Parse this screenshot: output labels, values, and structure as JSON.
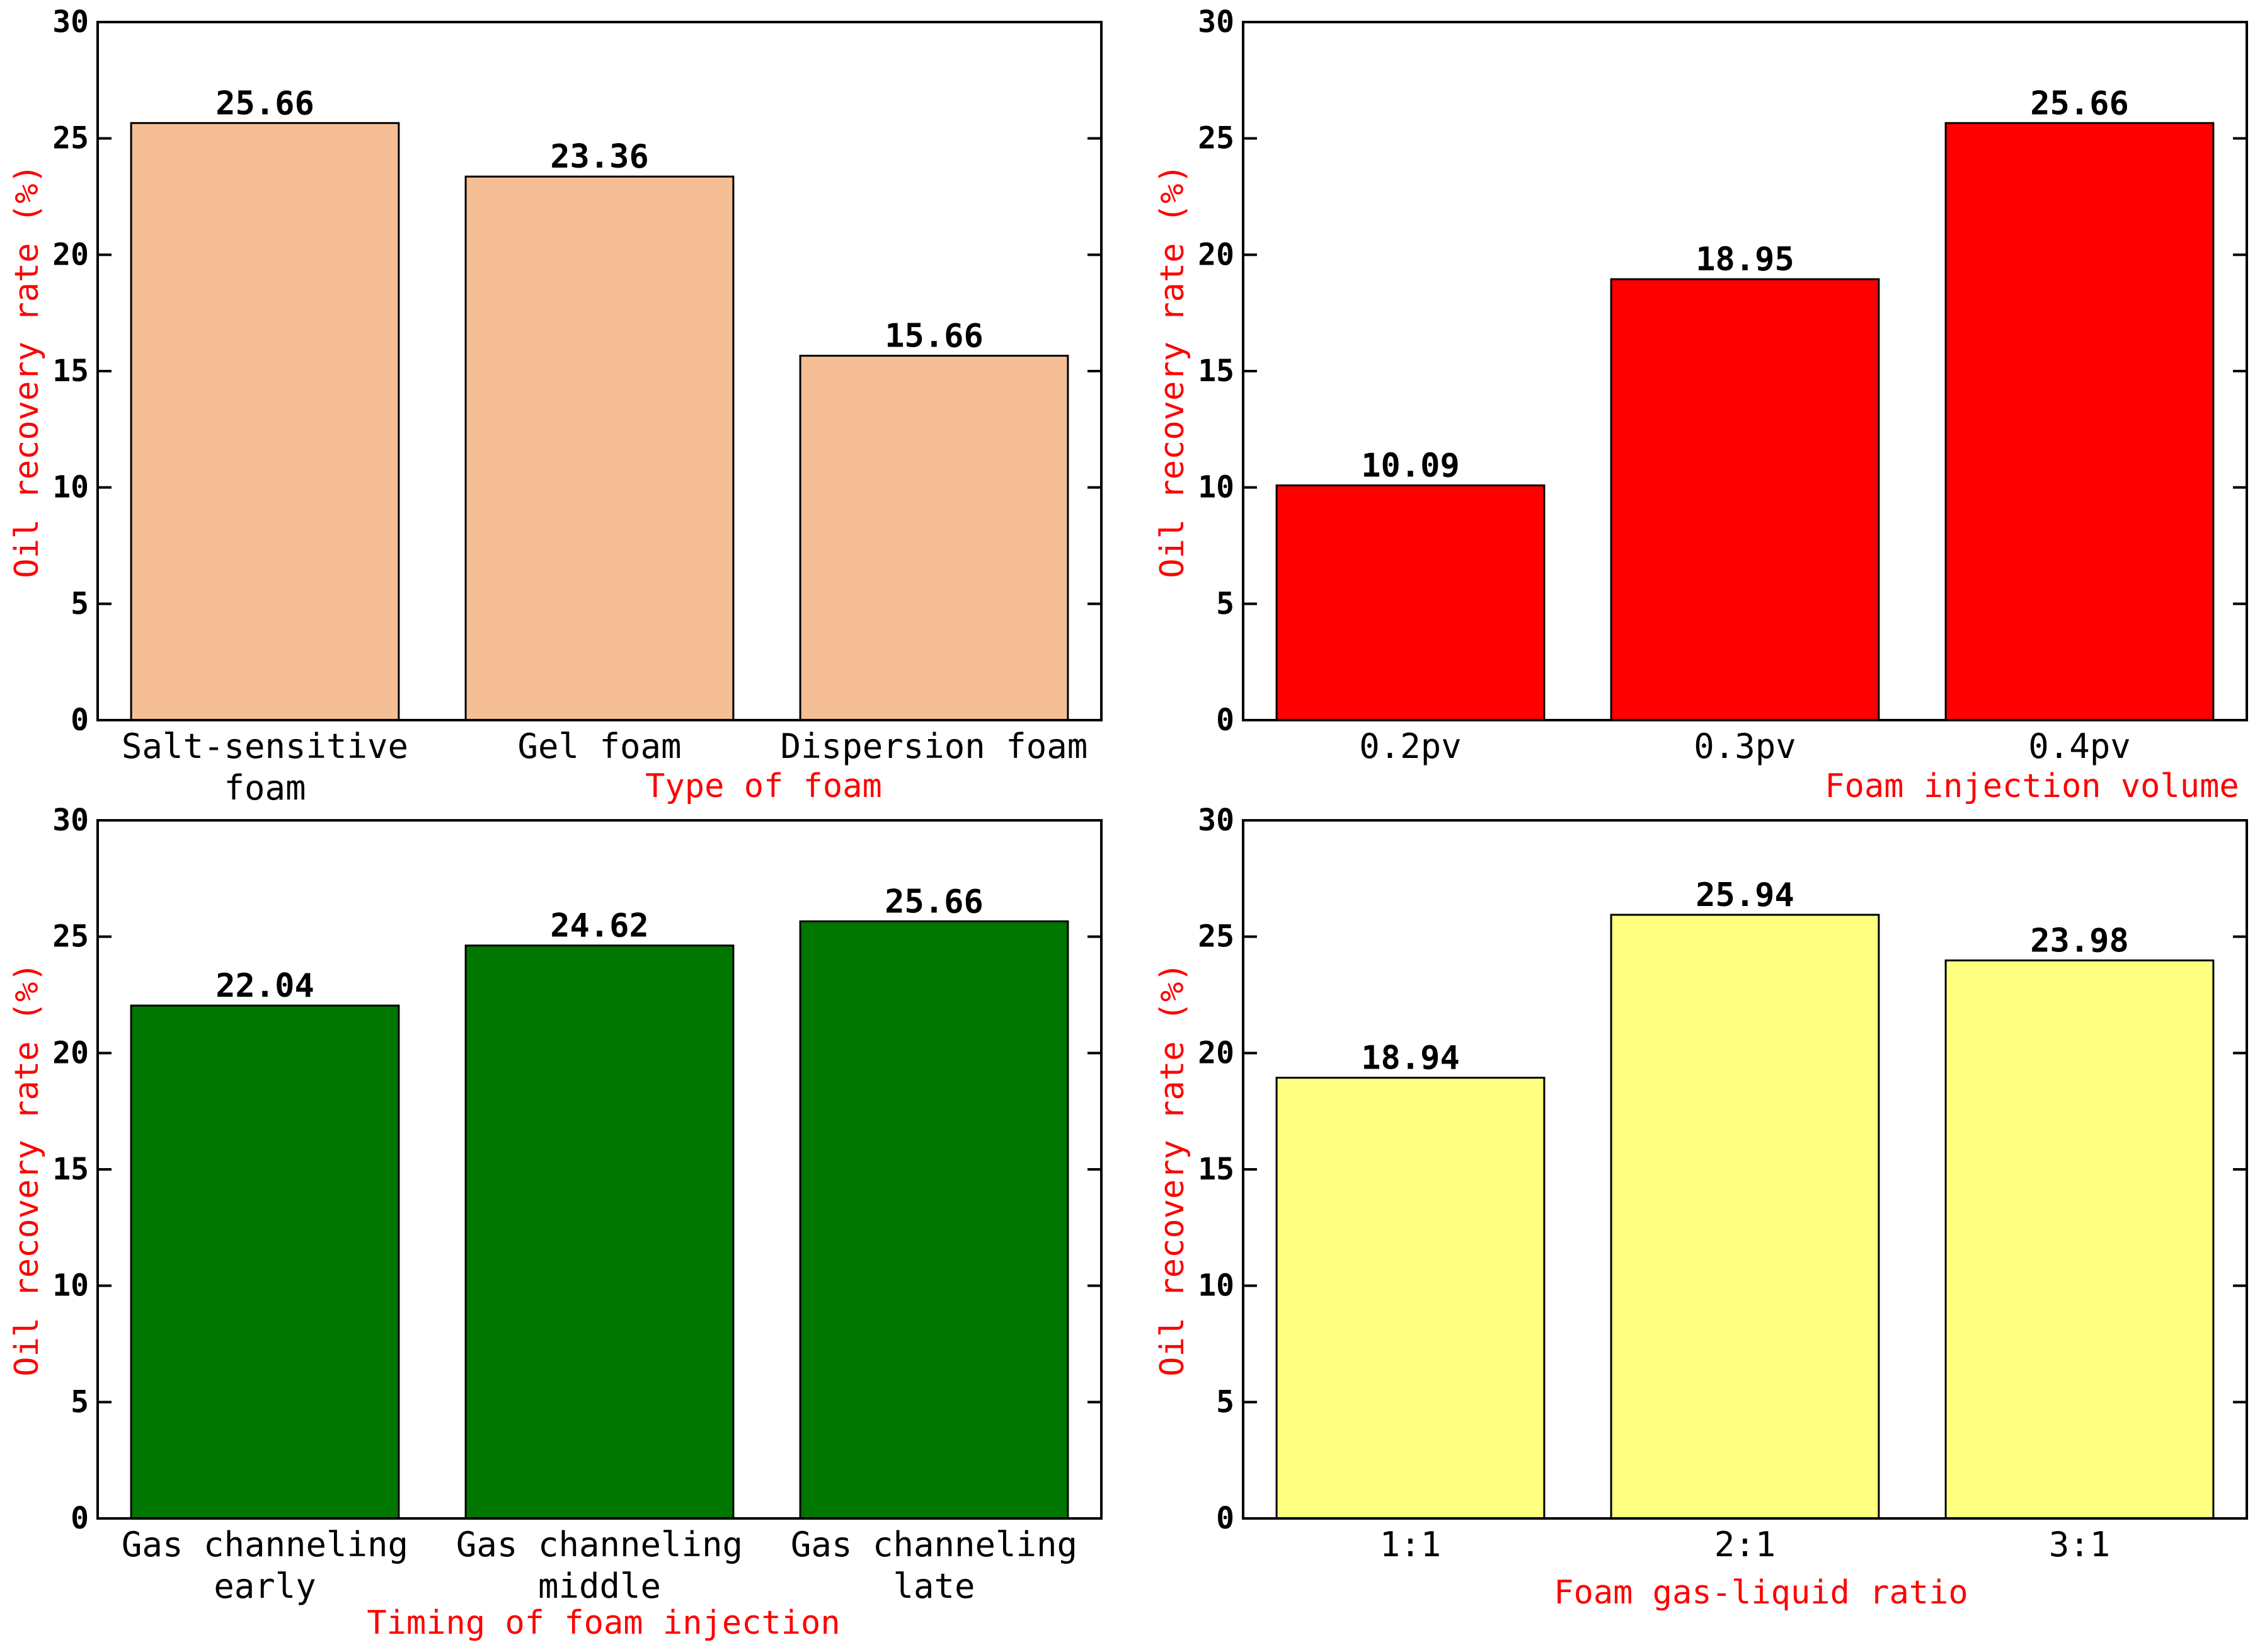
{
  "chart_data": [
    {
      "type": "bar",
      "title": "",
      "categories": [
        [
          "Salt-sensitive",
          "foam"
        ],
        [
          "Gel foam"
        ],
        [
          "Dispersion foam"
        ]
      ],
      "values": [
        25.66,
        23.36,
        15.66
      ],
      "value_labels": [
        "25.66",
        "23.36",
        "15.66"
      ],
      "xlabel": "Type of foam",
      "ylabel": "Oil recovery rate (%)",
      "ylim": [
        0,
        30
      ],
      "yticks": [
        0,
        5,
        10,
        15,
        20,
        25,
        30
      ],
      "bar_color": "#f5be94",
      "grid": false
    },
    {
      "type": "bar",
      "title": "",
      "categories": [
        [
          "0.2pv"
        ],
        [
          "0.3pv"
        ],
        [
          "0.4pv"
        ]
      ],
      "values": [
        10.09,
        18.95,
        25.66
      ],
      "value_labels": [
        "10.09",
        "18.95",
        "25.66"
      ],
      "xlabel": "Foam injection volume",
      "ylabel": "Oil recovery rate (%)",
      "ylim": [
        0,
        30
      ],
      "yticks": [
        0,
        5,
        10,
        15,
        20,
        25,
        30
      ],
      "bar_color": "#ff0000",
      "grid": false
    },
    {
      "type": "bar",
      "title": "",
      "categories": [
        [
          "Gas channeling",
          "early"
        ],
        [
          "Gas channeling",
          "middle"
        ],
        [
          "Gas channeling",
          "late"
        ]
      ],
      "values": [
        22.04,
        24.62,
        25.66
      ],
      "value_labels": [
        "22.04",
        "24.62",
        "25.66"
      ],
      "xlabel": "Timing of foam injection",
      "ylabel": "Oil recovery rate (%)",
      "ylim": [
        0,
        30
      ],
      "yticks": [
        0,
        5,
        10,
        15,
        20,
        25,
        30
      ],
      "bar_color": "#007700",
      "grid": false
    },
    {
      "type": "bar",
      "title": "",
      "categories": [
        [
          "1:1"
        ],
        [
          "2:1"
        ],
        [
          "3:1"
        ]
      ],
      "values": [
        18.94,
        25.94,
        23.98
      ],
      "value_labels": [
        "18.94",
        "25.94",
        "23.98"
      ],
      "xlabel": "Foam gas-liquid ratio",
      "ylabel": "Oil recovery rate (%)",
      "ylim": [
        0,
        30
      ],
      "yticks": [
        0,
        5,
        10,
        15,
        20,
        25,
        30
      ],
      "bar_color": "#ffff80",
      "grid": false
    }
  ]
}
